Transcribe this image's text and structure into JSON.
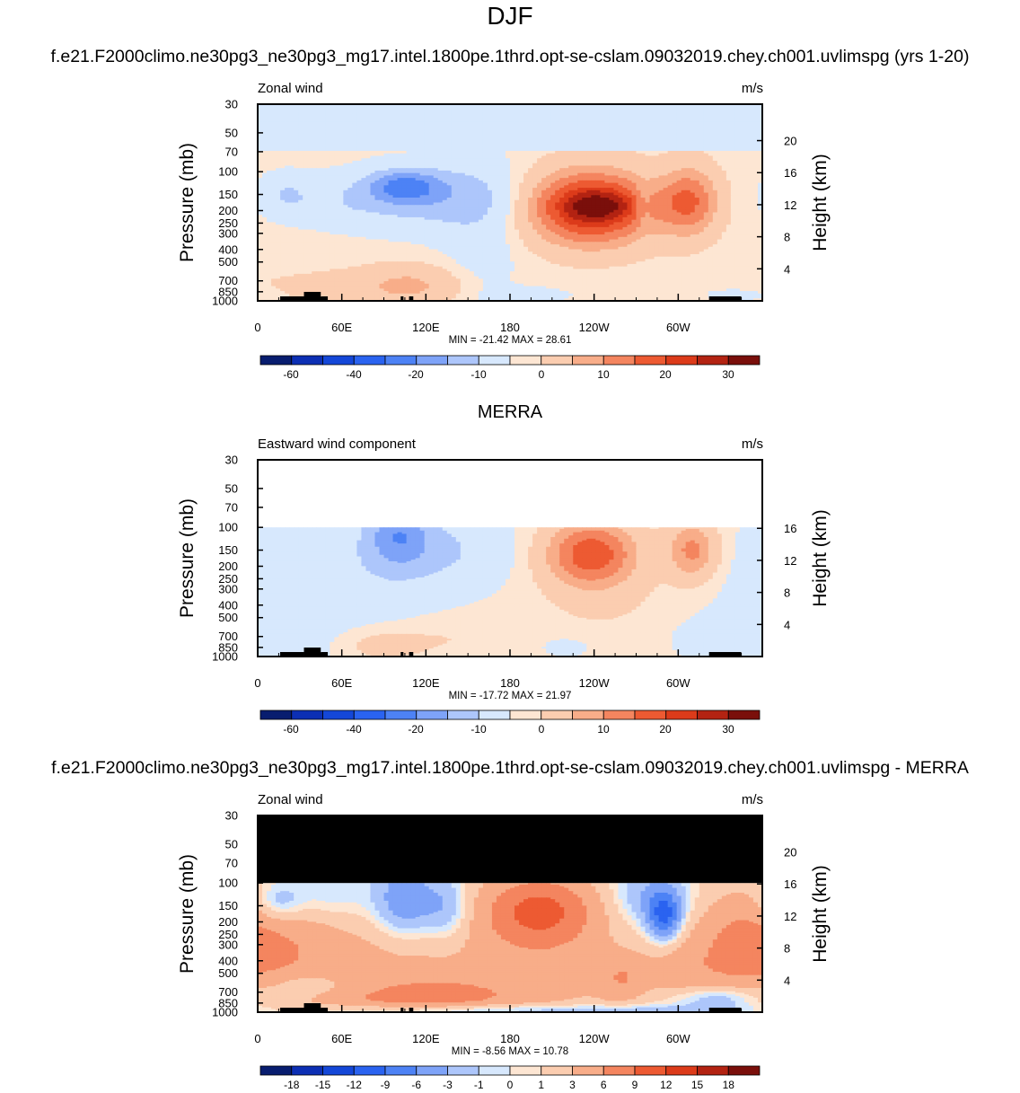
{
  "page": {
    "title": "DJF",
    "panel1_title": "f.e21.F2000climo.ne30pg3_ne30pg3_mg17.intel.1800pe.1thrd.opt-se-cslam.09032019.chey.ch001.uvlimspg (yrs 1-20)",
    "panel2_title": "MERRA",
    "panel3_title": "f.e21.F2000climo.ne30pg3_ne30pg3_mg17.intel.1800pe.1thrd.opt-se-cslam.09032019.chey.ch001.uvlimspg - MERRA"
  },
  "colors": {
    "levels_main": [
      "#081d6f",
      "#0c2fb4",
      "#1447d8",
      "#2a63f0",
      "#4d82f5",
      "#7ea3f8",
      "#adc6fb",
      "#d7e8fd",
      "#fde6d3",
      "#fbcdb0",
      "#f8ad89",
      "#f4855f",
      "#ed5a32",
      "#dc3b1a",
      "#b32312",
      "#7a0f0b"
    ],
    "levels_diff": [
      "#081d6f",
      "#0c2fb4",
      "#1447d8",
      "#2a63f0",
      "#4d82f5",
      "#7ea3f8",
      "#adc6fb",
      "#d7e8fd",
      "#fde6d3",
      "#fbcdb0",
      "#f8ad89",
      "#f4855f",
      "#ed5a32",
      "#dc3b1a",
      "#b32312",
      "#7a0f0b"
    ],
    "topo": "#000000",
    "masked": "#000000"
  },
  "chart_data": [
    {
      "type": "heatmap",
      "panel": "model",
      "title": "Zonal wind",
      "units": "m/s",
      "xlabel": "",
      "ylabel": "Pressure (mb)",
      "y2label": "Height (km)",
      "xticks": [
        "0",
        "60E",
        "120E",
        "180",
        "120W",
        "60W"
      ],
      "yticks": [
        "30",
        "50",
        "70",
        "100",
        "150",
        "200",
        "250",
        "300",
        "400",
        "500",
        "700",
        "850",
        "1000"
      ],
      "y2ticks": [
        "20",
        "16",
        "12",
        "8",
        "4"
      ],
      "stats": "MIN = -21.42  MAX =  28.61",
      "min": -21.42,
      "max": 28.61,
      "colorbar_labels": [
        "-60",
        "-40",
        "-20",
        "-10",
        "0",
        "10",
        "20",
        "30"
      ],
      "data_top_hPa": 30
    },
    {
      "type": "heatmap",
      "panel": "reanalysis",
      "title": "Eastward wind component",
      "units": "m/s",
      "xlabel": "",
      "ylabel": "Pressure (mb)",
      "y2label": "Height (km)",
      "xticks": [
        "0",
        "60E",
        "120E",
        "180",
        "120W",
        "60W"
      ],
      "yticks": [
        "30",
        "50",
        "70",
        "100",
        "150",
        "200",
        "250",
        "300",
        "400",
        "500",
        "700",
        "850",
        "1000"
      ],
      "y2ticks": [
        "16",
        "12",
        "8",
        "4"
      ],
      "stats": "MIN = -17.72  MAX =  21.97",
      "min": -17.72,
      "max": 21.97,
      "colorbar_labels": [
        "-60",
        "-40",
        "-20",
        "-10",
        "0",
        "10",
        "20",
        "30"
      ],
      "data_top_hPa": 100
    },
    {
      "type": "heatmap",
      "panel": "difference",
      "title": "Zonal wind",
      "units": "m/s",
      "xlabel": "",
      "ylabel": "Pressure (mb)",
      "y2label": "Height (km)",
      "xticks": [
        "0",
        "60E",
        "120E",
        "180",
        "120W",
        "60W"
      ],
      "yticks": [
        "30",
        "50",
        "70",
        "100",
        "150",
        "200",
        "250",
        "300",
        "400",
        "500",
        "700",
        "850",
        "1000"
      ],
      "y2ticks": [
        "20",
        "16",
        "12",
        "8",
        "4"
      ],
      "stats": "MIN = -8.56  MAX =  10.78",
      "min": -8.56,
      "max": 10.78,
      "colorbar_labels": [
        "-18",
        "-15",
        "-12",
        "-9",
        "-6",
        "-3",
        "-1",
        "0",
        "1",
        "3",
        "6",
        "9",
        "12",
        "15",
        "18"
      ],
      "data_top_hPa": 100
    }
  ]
}
